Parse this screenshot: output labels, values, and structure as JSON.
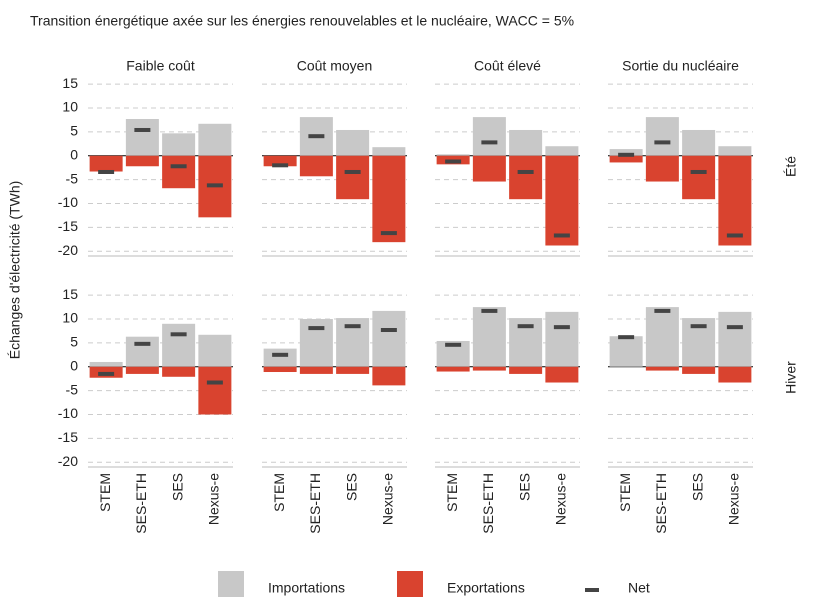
{
  "chart_data": {
    "type": "bar",
    "title": "Transition énergétique axée sur les énergies renouvelables et le nucléaire, WACC = 5%",
    "ylabel": "Échanges d'électricité (TWh)",
    "columns": [
      "Faible coût",
      "Coût moyen",
      "Coût élevé",
      "Sortie du nucléaire"
    ],
    "rows": [
      "Été",
      "Hiver"
    ],
    "categories": [
      "STEM",
      "SES-ETH",
      "SES",
      "Nexus-e"
    ],
    "ylim": [
      -21,
      16.5
    ],
    "yticks": [
      -20,
      -15,
      -10,
      -5,
      0,
      5,
      10,
      15
    ],
    "grid": true,
    "series": [
      {
        "name": "Importations",
        "color": "#c8c8c8",
        "values": [
          [
            [
              0,
              7.7,
              4.7,
              6.7
            ],
            [
              0,
              8.1,
              5.4,
              1.8
            ],
            [
              0.3,
              8.1,
              5.4,
              2.0
            ],
            [
              1.4,
              8.1,
              5.4,
              2.0
            ]
          ],
          [
            [
              1.0,
              6.3,
              9.0,
              6.7
            ],
            [
              3.8,
              10.0,
              10.2,
              11.7
            ],
            [
              5.4,
              12.5,
              10.2,
              11.5
            ],
            [
              6.4,
              12.5,
              10.2,
              11.5
            ]
          ]
        ]
      },
      {
        "name": "Exportations",
        "color": "#d9432f",
        "values": [
          [
            [
              -3.3,
              -2.2,
              -6.8,
              -12.9
            ],
            [
              -2.2,
              -4.3,
              -9.1,
              -18.1
            ],
            [
              -1.8,
              -5.4,
              -9.1,
              -18.8
            ],
            [
              -1.4,
              -5.4,
              -9.1,
              -18.8
            ]
          ],
          [
            [
              -2.3,
              -1.5,
              -2.1,
              -10.0
            ],
            [
              -1.1,
              -1.5,
              -1.5,
              -3.9
            ],
            [
              -1.0,
              -0.8,
              -1.5,
              -3.3
            ],
            [
              0,
              -0.8,
              -1.5,
              -3.3
            ]
          ]
        ]
      },
      {
        "name": "Net",
        "color": "#444444",
        "values": [
          [
            [
              -3.4,
              5.4,
              -2.2,
              -6.2
            ],
            [
              -2.0,
              4.1,
              -3.4,
              -16.2
            ],
            [
              -1.2,
              2.8,
              -3.4,
              -16.7
            ],
            [
              0.2,
              2.8,
              -3.4,
              -16.7
            ]
          ],
          [
            [
              -1.5,
              4.8,
              6.8,
              -3.3
            ],
            [
              2.5,
              8.1,
              8.5,
              7.7
            ],
            [
              4.6,
              11.7,
              8.5,
              8.3
            ],
            [
              6.2,
              11.7,
              8.5,
              8.3
            ]
          ]
        ]
      }
    ]
  }
}
